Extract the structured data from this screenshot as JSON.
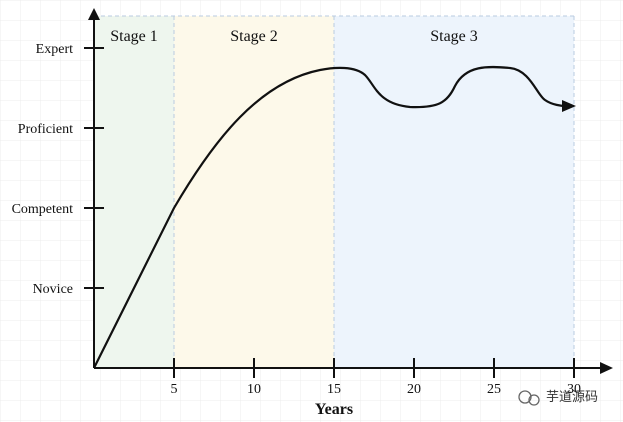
{
  "stages": [
    {
      "label": "Stage 1",
      "from": 0,
      "to": 5,
      "color": "#eef6ee"
    },
    {
      "label": "Stage 2",
      "from": 5,
      "to": 15,
      "color": "#fdf9ea"
    },
    {
      "label": "Stage 3",
      "from": 15,
      "to": 30,
      "color": "#edf4fc"
    }
  ],
  "y_levels": [
    {
      "label": "Novice",
      "level": 1
    },
    {
      "label": "Competent",
      "level": 2
    },
    {
      "label": "Proficient",
      "level": 3
    },
    {
      "label": "Expert",
      "level": 4
    }
  ],
  "x_ticks": [
    "5",
    "10",
    "15",
    "20",
    "25",
    "30"
  ],
  "x_axis_title": "Years",
  "watermark": "芋道源码",
  "colors": {
    "curve": "#111111",
    "axis": "#111111",
    "grid": "#e3e3e3",
    "stage_divider": "#b8cfe3"
  }
}
